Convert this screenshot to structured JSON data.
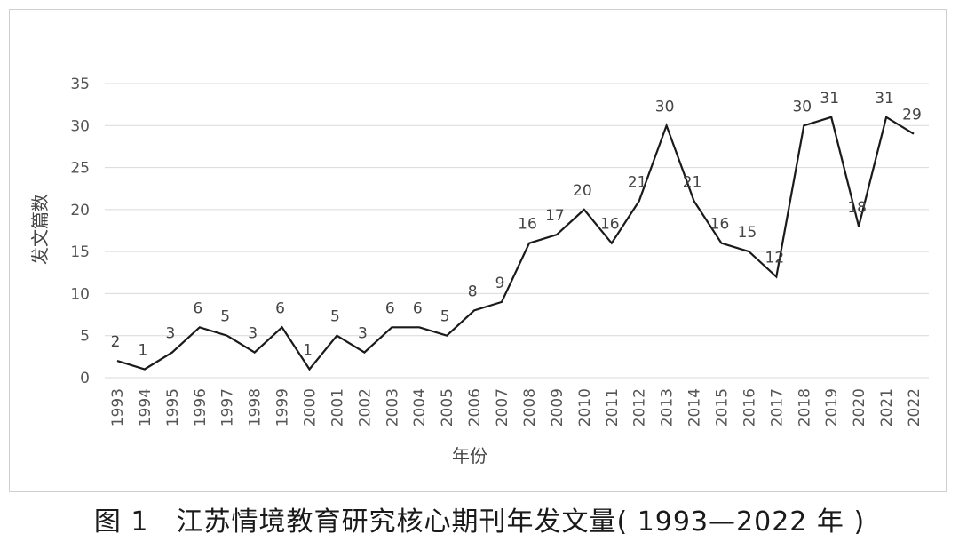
{
  "caption": "图 1　江苏情境教育研究核心期刊年发文量( 1993—2022 年 )",
  "chart_data": {
    "type": "line",
    "title": "",
    "xlabel": "年份",
    "ylabel": "发文篇数",
    "ylim": [
      0,
      35
    ],
    "yticks": [
      0,
      5,
      10,
      15,
      20,
      25,
      30,
      35
    ],
    "grid": true,
    "legend": "none",
    "line_color": "#1a1a1a",
    "grid_color": "#d9d9d9",
    "categories": [
      "1993",
      "1994",
      "1995",
      "1996",
      "1997",
      "1998",
      "1999",
      "2000",
      "2001",
      "2002",
      "2003",
      "2004",
      "2005",
      "2006",
      "2007",
      "2008",
      "2009",
      "2010",
      "2011",
      "2012",
      "2013",
      "2014",
      "2015",
      "2016",
      "2017",
      "2018",
      "2019",
      "2020",
      "2021",
      "2022"
    ],
    "values": [
      2,
      1,
      3,
      6,
      5,
      3,
      6,
      1,
      5,
      3,
      6,
      6,
      5,
      8,
      9,
      16,
      17,
      20,
      16,
      21,
      30,
      21,
      16,
      15,
      12,
      30,
      31,
      18,
      31,
      29
    ]
  }
}
